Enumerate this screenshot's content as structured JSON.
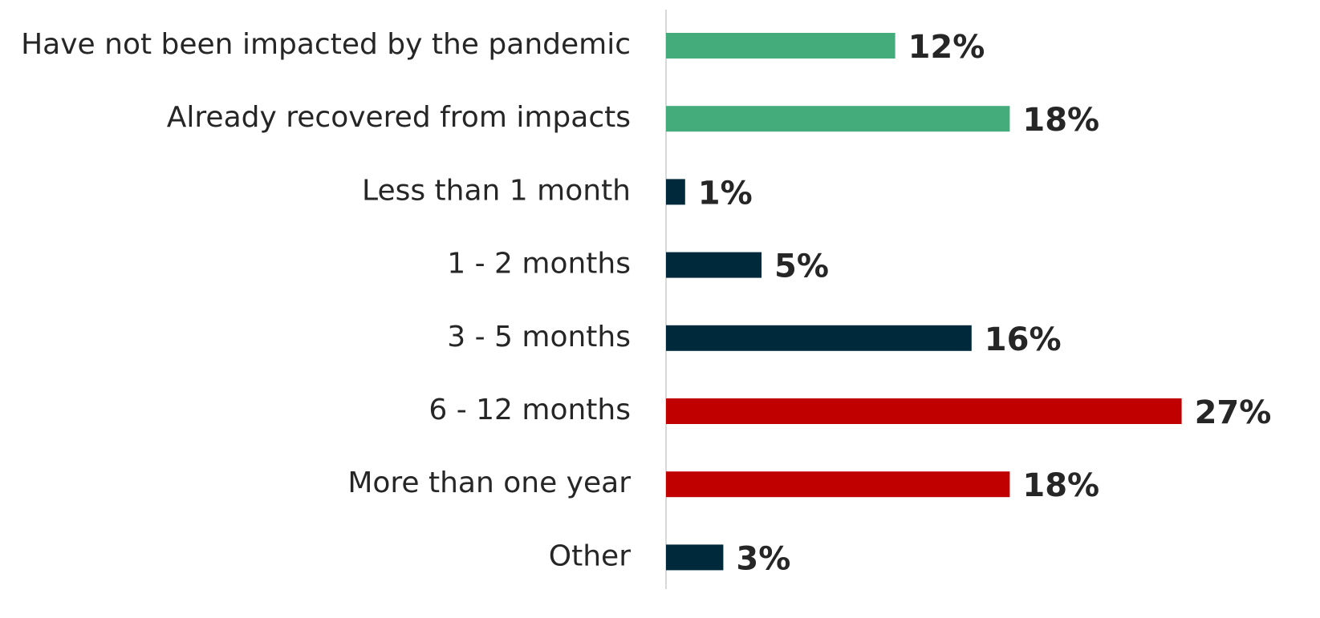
{
  "chart_data": {
    "type": "bar",
    "orientation": "horizontal",
    "categories": [
      "Have not been impacted by the pandemic",
      "Already recovered from impacts",
      "Less than 1 month",
      "1 - 2 months",
      "3 - 5 months",
      "6 - 12 months",
      "More than one year",
      "Other"
    ],
    "values": [
      12,
      18,
      1,
      5,
      16,
      27,
      18,
      3
    ],
    "value_labels": [
      "12%",
      "18%",
      "1%",
      "5%",
      "16%",
      "27%",
      "18%",
      "3%"
    ],
    "colors": [
      "#44ac7b",
      "#44ac7b",
      "#00293c",
      "#00293c",
      "#00293c",
      "#c00000",
      "#c00000",
      "#00293c"
    ],
    "xlim": [
      0,
      30
    ]
  }
}
